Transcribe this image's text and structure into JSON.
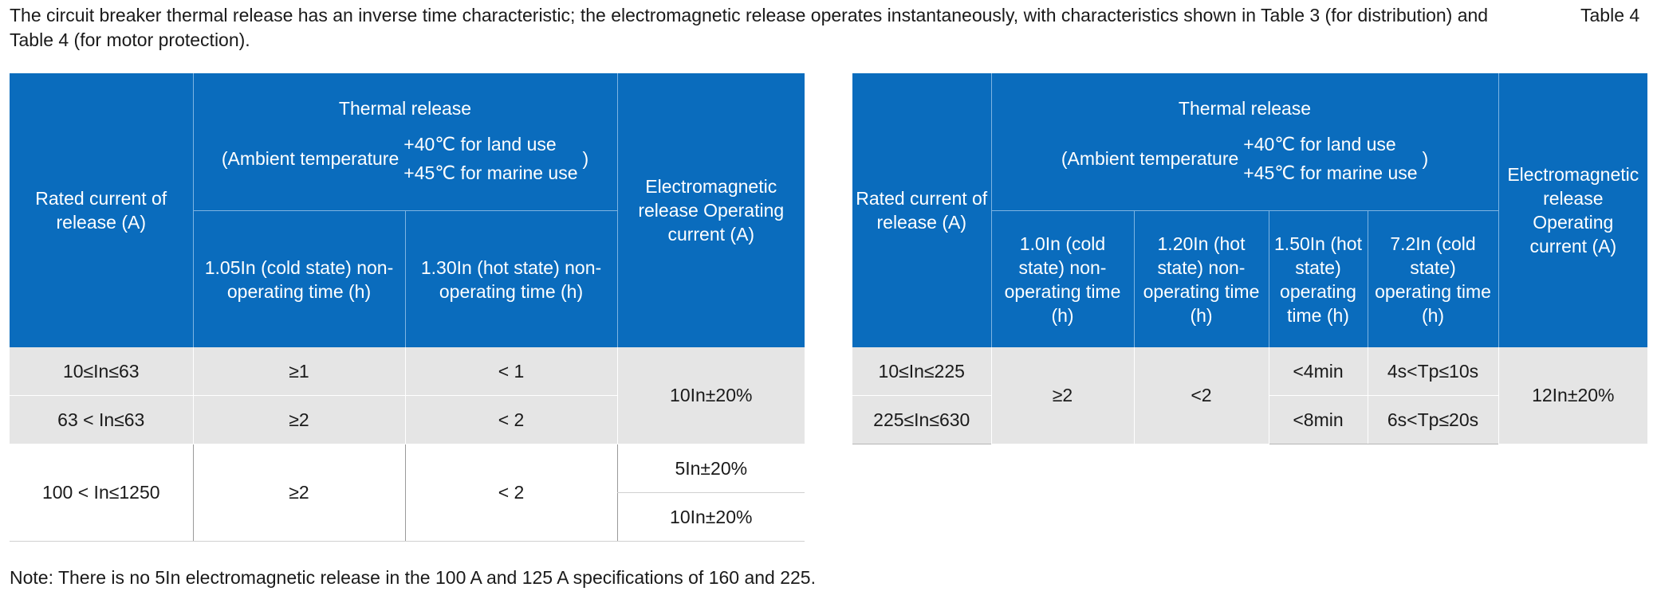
{
  "intro": "The circuit breaker thermal release has an inverse time characteristic; the electromagnetic release operates instantaneously, with characteristics shown in Table 3 (for distribution) and Table 4 (for motor protection).",
  "table_label": "Table 4",
  "colors": {
    "header_bg": "#0a6cbd",
    "row_grey": "#e5e5e5"
  },
  "table3": {
    "rated_header": "Rated current of release (A)",
    "thermal_header": "Thermal release",
    "ambient_prefix": "(Ambient temperature",
    "ambient_land": "+40℃ for land use",
    "ambient_marine": "+45℃ for marine use",
    "ambient_suffix": ")",
    "em_header": "Electromagnetic release Operating current (A)",
    "sub_headers": [
      "1.05In (cold state) non-operating time (h)",
      "1.30In (hot state) non-operating time (h)"
    ],
    "rows": [
      {
        "rated": "10≤In≤63",
        "cold": "≥1",
        "hot": "< 1"
      },
      {
        "rated": "63 < In≤63",
        "cold": "≥2",
        "hot": "< 2"
      },
      {
        "rated": "100 < In≤1250",
        "cold": "≥2",
        "hot": "< 2"
      }
    ],
    "em_values": [
      "10In±20%",
      "5In±20%",
      "10In±20%"
    ]
  },
  "table4": {
    "rated_header": "Rated current of release (A)",
    "thermal_header": "Thermal release",
    "ambient_prefix": "(Ambient temperature",
    "ambient_land": "+40℃ for land use",
    "ambient_marine": "+45℃ for marine use",
    "ambient_suffix": ")",
    "em_header": "Electromagnetic release Operating current (A)",
    "sub_headers": [
      "1.0In (cold state) non-operating time (h)",
      "1.20In (hot state) non-operating time (h)",
      "1.50In (hot state) operating time (h)",
      "7.2In (cold state) operating time (h)"
    ],
    "rows": [
      {
        "rated": "10≤In≤225",
        "op150": "<4min",
        "op72": "4s<Tp≤10s"
      },
      {
        "rated": "225≤In≤630",
        "op150": "<8min",
        "op72": "6s<Tp≤20s"
      }
    ],
    "merged": {
      "cold": "≥2",
      "hot": "<2",
      "em": "12In±20%"
    }
  },
  "note": "Note: There is no 5In electromagnetic release in the 100 A and 125 A specifications of 160 and 225."
}
